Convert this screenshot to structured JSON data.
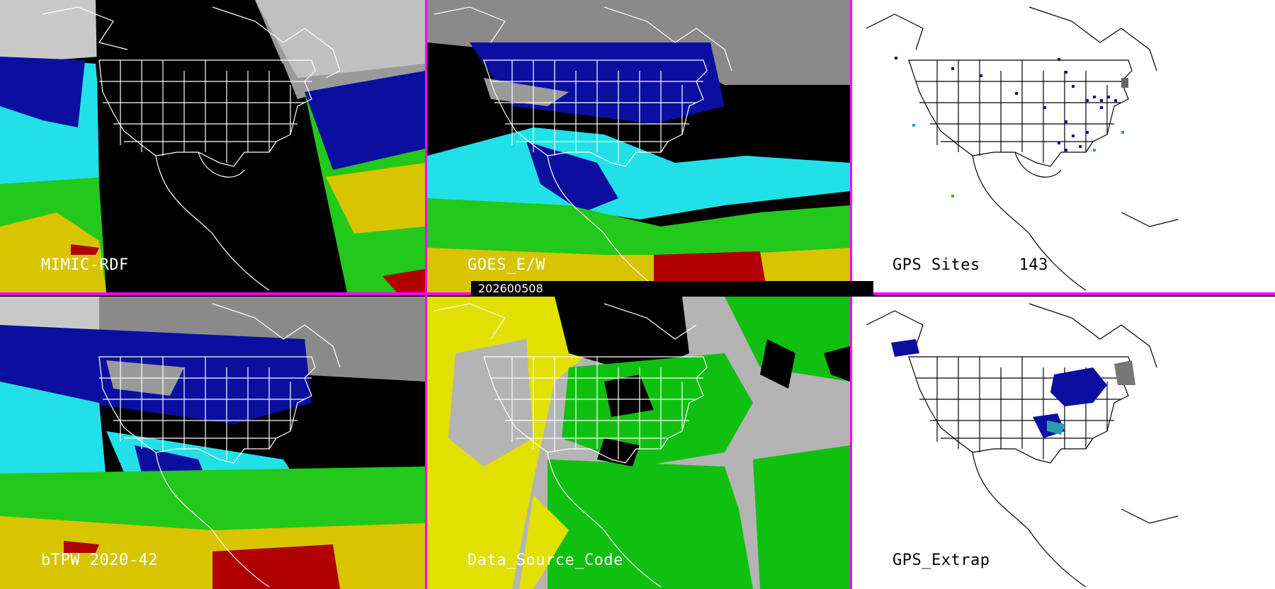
{
  "colors": {
    "divider": "#ff00ff",
    "water_cyan": "#22e0e8",
    "water_blue": "#0b0fa0",
    "water_green": "#22c81a",
    "water_yellow": "#d8c400",
    "water_red": "#b00000",
    "gray_cloud": "#8a8a8a",
    "source_gray": "#b4b4b4",
    "source_yellow": "#e2e000",
    "source_green": "#10c010"
  },
  "panels": [
    {
      "id": "mimic",
      "label": "MIMIC-RDF",
      "style": "tpw-with-night"
    },
    {
      "id": "goes",
      "label": "GOES_E/W",
      "style": "tpw"
    },
    {
      "id": "gps_sites",
      "label": "GPS Sites    143",
      "style": "white-map-points"
    },
    {
      "id": "btpw",
      "label": "bTPW 2020-42",
      "style": "tpw-full"
    },
    {
      "id": "source",
      "label": "Data_Source_Code",
      "style": "source-code"
    },
    {
      "id": "gps_extrap",
      "label": "GPS_Extrap",
      "style": "white-map-blobs"
    }
  ],
  "date_label": "202600508"
}
